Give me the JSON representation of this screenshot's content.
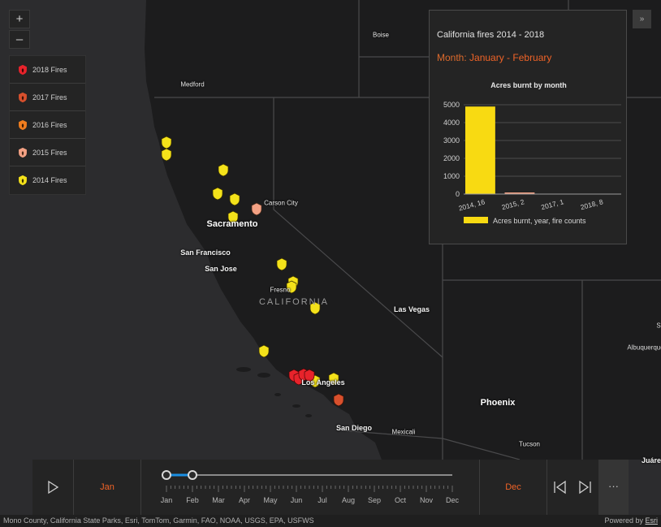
{
  "map": {
    "state_label": "CALIFORNIA",
    "cities": {
      "boise": "Boise",
      "medford": "Medford",
      "carson_city": "Carson City",
      "sacramento": "Sacramento",
      "san_francisco": "San Francisco",
      "san_jose": "San Jose",
      "fresno": "Fresno",
      "las_vegas": "Las Vegas",
      "los_angeles": "Los Angeles",
      "san_diego": "San Diego",
      "mexicali": "Mexicali",
      "phoenix": "Phoenix",
      "tucson": "Tucson",
      "albuquerque": "Albuquerque",
      "juarez_partial": "Juáre",
      "edge_s": "S"
    }
  },
  "zoom": {
    "in_label": "+",
    "out_label": "–"
  },
  "legend": {
    "items": [
      {
        "label": "2018 Fires",
        "color": "#e8232b"
      },
      {
        "label": "2017 Fires",
        "color": "#d8502d"
      },
      {
        "label": "2016 Fires",
        "color": "#f07d1e"
      },
      {
        "label": "2015 Fires",
        "color": "#f3a184"
      },
      {
        "label": "2014 Fires",
        "color": "#f4e21a"
      }
    ]
  },
  "panel": {
    "title": "California fires 2014 - 2018",
    "month_label": "Month:",
    "month_value": "January - February",
    "collapse_icon": "»"
  },
  "chart_data": {
    "type": "bar",
    "title": "Acres burnt by month",
    "categories": [
      "2014, 16",
      "2015, 2",
      "2017, 1",
      "2018, 8"
    ],
    "values": [
      4900,
      90,
      0,
      0
    ],
    "colors": [
      "#f8da12",
      "#f3a184",
      "#d8502d",
      "#e8232b"
    ],
    "ylim": [
      0,
      5000
    ],
    "yticks": [
      0,
      1000,
      2000,
      3000,
      4000,
      5000
    ],
    "legend": "Acres burnt, year, fire counts",
    "xlabel": "",
    "ylabel": ""
  },
  "timebar": {
    "start_label": "Jan",
    "end_label": "Dec",
    "months": [
      "Jan",
      "Feb",
      "Mar",
      "Apr",
      "May",
      "Jun",
      "Jul",
      "Aug",
      "Sep",
      "Oct",
      "Nov",
      "Dec"
    ],
    "range_start_month": 0,
    "range_end_month": 1,
    "more_label": "···",
    "accent_color": "#1a8fe3"
  },
  "attribution": {
    "text": "Mono County, California State Parks, Esri, TomTom, Garmin, FAO, NOAA, USGS, EPA, USFWS",
    "powered_prefix": "Powered by ",
    "powered_link": "Esri"
  }
}
